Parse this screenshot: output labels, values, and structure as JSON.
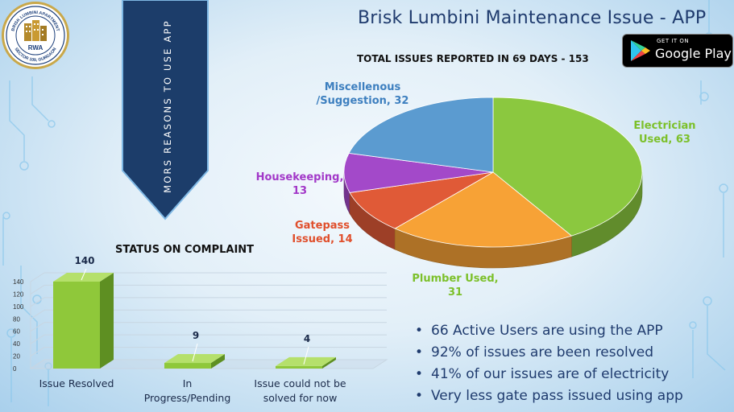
{
  "header": {
    "title": "Brisk Lumbini Maintenance Issue - APP",
    "google_play": {
      "small": "GET IT ON",
      "big": "Google Play"
    }
  },
  "logo": {
    "top_text": "BRISK LUMBINI APARTMENT",
    "center_text": "RWA",
    "bottom_text": "SECTOR 109, GURGAON"
  },
  "banner": {
    "text": "MORS REASONS TO USE APP"
  },
  "colors": {
    "electrician": "#8bc83f",
    "plumber": "#f7a236",
    "gatepass": "#e05a37",
    "housekeeping": "#a349c9",
    "misc": "#5b9bd0",
    "bar": "#8fc83a",
    "title": "#1f3b6e"
  },
  "chart_data": [
    {
      "type": "pie",
      "title": "TOTAL ISSUES REPORTED IN 69 DAYS - 153",
      "slices": [
        {
          "key": "electrician",
          "label": "Electrician Used, 63",
          "lines": [
            "Electrician",
            "Used, 63"
          ],
          "value": 63
        },
        {
          "key": "plumber",
          "label": "Plumber Used, 31",
          "lines": [
            "Plumber Used,",
            "31"
          ],
          "value": 31
        },
        {
          "key": "gatepass",
          "label": "Gatepass Issued, 14",
          "lines": [
            "Gatepass",
            "Issued, 14"
          ],
          "value": 14
        },
        {
          "key": "housekeeping",
          "label": "Housekeeping, 13",
          "lines": [
            "Housekeeping,",
            "13"
          ],
          "value": 13
        },
        {
          "key": "misc",
          "label": "Miscellenous /Suggestion, 32",
          "lines": [
            "Miscellenous",
            "/Suggestion, 32"
          ],
          "value": 32
        }
      ],
      "legend": "none"
    },
    {
      "type": "bar",
      "title": "STATUS ON COMPLAINT",
      "categories": [
        {
          "lines": [
            "Issue Resolved"
          ]
        },
        {
          "lines": [
            "In",
            "Progress/Pending"
          ]
        },
        {
          "lines": [
            "Issue could not be",
            "solved for now"
          ]
        }
      ],
      "values": [
        140,
        9,
        4
      ],
      "ylim": [
        0,
        140
      ],
      "yticks": [
        "0",
        "20",
        "40",
        "60",
        "80",
        "100",
        "120",
        "140"
      ],
      "grid": true,
      "data_labels": [
        "140",
        "9",
        "4"
      ]
    }
  ],
  "bullets": [
    "66 Active Users are using the APP",
    "92% of issues are been resolved",
    "41% of our issues are of electricity",
    "Very less gate pass issued using app"
  ]
}
